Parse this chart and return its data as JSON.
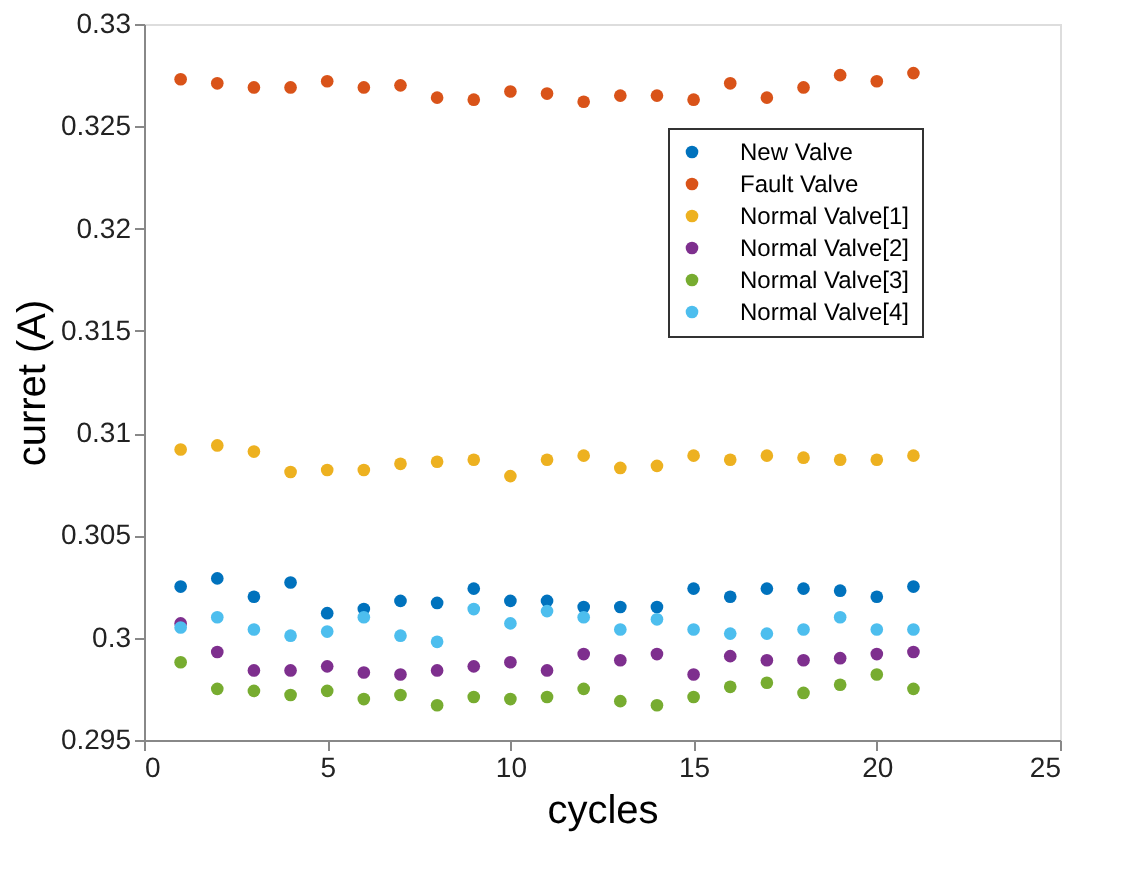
{
  "chart_data": {
    "type": "scatter",
    "xlabel": "cycles",
    "ylabel": "curret (A)",
    "x": [
      1,
      2,
      3,
      4,
      5,
      6,
      7,
      8,
      9,
      10,
      11,
      12,
      13,
      14,
      15,
      16,
      17,
      18,
      19,
      20,
      21
    ],
    "xlim": [
      0,
      25
    ],
    "xticks": [
      0,
      5,
      10,
      15,
      20,
      25
    ],
    "ylim": [
      0.295,
      0.33
    ],
    "yticks": [
      0.295,
      0.3,
      0.305,
      0.31,
      0.315,
      0.32,
      0.325,
      0.33
    ],
    "grid": false,
    "legend": "top right",
    "marker": "circle",
    "series": [
      {
        "name": "New Valve",
        "color": "#0072bd",
        "values": [
          0.3025,
          0.3029,
          0.302,
          0.3027,
          0.3012,
          0.3014,
          0.3018,
          0.3017,
          0.3024,
          0.3018,
          0.3018,
          0.3015,
          0.3015,
          0.3015,
          0.3024,
          0.302,
          0.3024,
          0.3024,
          0.3023,
          0.302,
          0.3025
        ]
      },
      {
        "name": "Fault Valve",
        "color": "#d95319",
        "values": [
          0.3273,
          0.3271,
          0.3269,
          0.3269,
          0.3272,
          0.3269,
          0.327,
          0.3264,
          0.3263,
          0.3267,
          0.3266,
          0.3262,
          0.3265,
          0.3265,
          0.3263,
          0.3271,
          0.3264,
          0.3269,
          0.3275,
          0.3272,
          0.3276
        ]
      },
      {
        "name": "Normal Valve[1]",
        "color": "#edb120",
        "values": [
          0.3092,
          0.3094,
          0.3091,
          0.3081,
          0.3082,
          0.3082,
          0.3085,
          0.3086,
          0.3087,
          0.3079,
          0.3087,
          0.3089,
          0.3083,
          0.3084,
          0.3089,
          0.3087,
          0.3089,
          0.3088,
          0.3087,
          0.3087,
          0.3089
        ]
      },
      {
        "name": "Normal Valve[2]",
        "color": "#7e2f8e",
        "values": [
          0.3007,
          0.2993,
          0.2984,
          0.2984,
          0.2986,
          0.2983,
          0.2982,
          0.2984,
          0.2986,
          0.2988,
          0.2984,
          0.2992,
          0.2989,
          0.2992,
          0.2982,
          0.2991,
          0.2989,
          0.2989,
          0.299,
          0.2992,
          0.2993
        ]
      },
      {
        "name": "Normal Valve[3]",
        "color": "#77ac30",
        "values": [
          0.2988,
          0.2975,
          0.2974,
          0.2972,
          0.2974,
          0.297,
          0.2972,
          0.2967,
          0.2971,
          0.297,
          0.2971,
          0.2975,
          0.2969,
          0.2967,
          0.2971,
          0.2976,
          0.2978,
          0.2973,
          0.2977,
          0.2982,
          0.2975
        ]
      },
      {
        "name": "Normal Valve[4]",
        "color": "#4dbeee",
        "values": [
          0.3005,
          0.301,
          0.3004,
          0.3001,
          0.3003,
          0.301,
          0.3001,
          0.2998,
          0.3014,
          0.3007,
          0.3013,
          0.301,
          0.3004,
          0.3009,
          0.3004,
          0.3002,
          0.3002,
          0.3004,
          0.301,
          0.3004,
          0.3004
        ]
      }
    ]
  }
}
